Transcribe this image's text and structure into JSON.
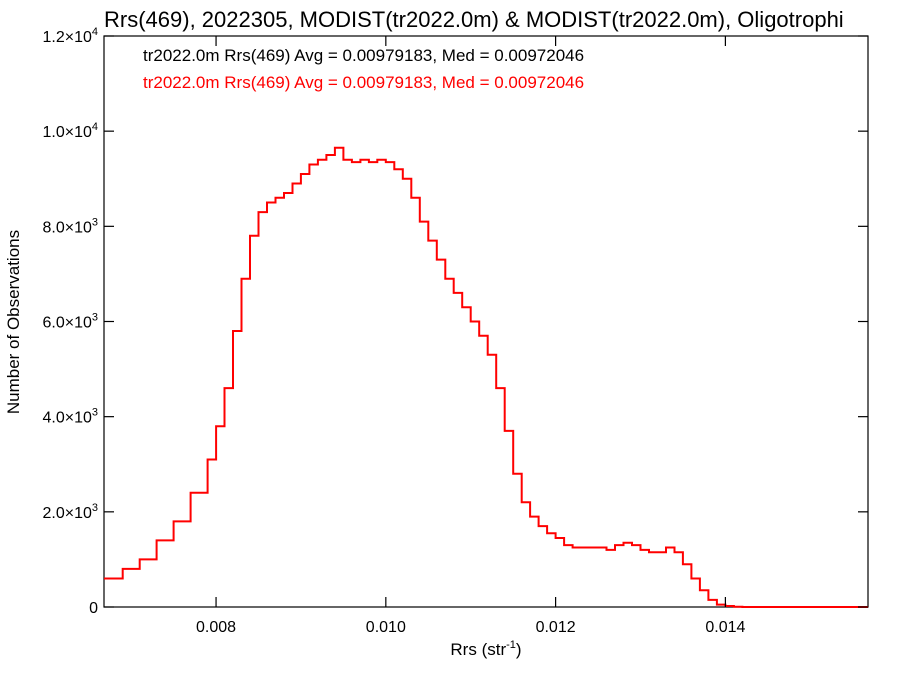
{
  "chart_data": {
    "type": "line",
    "title": "Rrs(469), 2022305, MODIST(tr2022.0m) & MODIST(tr2022.0m), Oligotrophi",
    "xlabel": "Rrs (str",
    "xlabel_sup": "-1",
    "xlabel_end": ")",
    "ylabel": "Number of Observations",
    "xlim": [
      0.00668,
      0.01568
    ],
    "ylim": [
      0,
      12000
    ],
    "x_ticks": [
      {
        "value": 0.008,
        "label": "0.008"
      },
      {
        "value": 0.01,
        "label": "0.010"
      },
      {
        "value": 0.012,
        "label": "0.012"
      },
      {
        "value": 0.014,
        "label": "0.014"
      }
    ],
    "y_ticks": [
      {
        "value": 0,
        "mant": "0",
        "exp": ""
      },
      {
        "value": 2000,
        "mant": "2.0×10",
        "exp": "3"
      },
      {
        "value": 4000,
        "mant": "4.0×10",
        "exp": "3"
      },
      {
        "value": 6000,
        "mant": "6.0×10",
        "exp": "3"
      },
      {
        "value": 8000,
        "mant": "8.0×10",
        "exp": "3"
      },
      {
        "value": 10000,
        "mant": "1.0×10",
        "exp": "4"
      },
      {
        "value": 12000,
        "mant": "1.2×10",
        "exp": "4"
      }
    ],
    "grid": false,
    "legend": [
      {
        "text": "tr2022.0m Rrs(469) Avg = 0.00979183, Med = 0.00972046",
        "color": "#000000"
      },
      {
        "text": "tr2022.0m Rrs(469) Avg = 0.00979183, Med = 0.00972046",
        "color": "#ff0000"
      }
    ],
    "series": [
      {
        "color": "#ff0000",
        "x": [
          0.00668,
          0.0069,
          0.0071,
          0.0073,
          0.0075,
          0.0077,
          0.0079,
          0.008,
          0.0081,
          0.0082,
          0.0083,
          0.0084,
          0.0085,
          0.0086,
          0.0087,
          0.0088,
          0.0089,
          0.009,
          0.0091,
          0.0092,
          0.0093,
          0.0094,
          0.0095,
          0.0096,
          0.0097,
          0.0098,
          0.0099,
          0.01,
          0.0101,
          0.0102,
          0.0103,
          0.0104,
          0.0105,
          0.0106,
          0.0107,
          0.0108,
          0.0109,
          0.011,
          0.0111,
          0.0112,
          0.0113,
          0.0114,
          0.0115,
          0.0116,
          0.0117,
          0.0118,
          0.0119,
          0.012,
          0.0121,
          0.0122,
          0.0123,
          0.0124,
          0.0125,
          0.0126,
          0.0127,
          0.0128,
          0.0129,
          0.013,
          0.0131,
          0.0132,
          0.0133,
          0.0134,
          0.0135,
          0.0136,
          0.0137,
          0.0138,
          0.0139,
          0.014,
          0.0141,
          0.0142,
          0.0145,
          0.015,
          0.0155,
          0.01568
        ],
        "y": [
          600,
          800,
          1000,
          1400,
          1800,
          2400,
          3100,
          3800,
          4600,
          5800,
          6900,
          7800,
          8300,
          8500,
          8600,
          8700,
          8900,
          9100,
          9300,
          9400,
          9500,
          9650,
          9400,
          9350,
          9400,
          9350,
          9400,
          9350,
          9200,
          9000,
          8600,
          8100,
          7700,
          7300,
          6900,
          6600,
          6300,
          6000,
          5700,
          5300,
          4600,
          3700,
          2800,
          2200,
          1900,
          1700,
          1550,
          1450,
          1300,
          1250,
          1250,
          1250,
          1250,
          1200,
          1300,
          1350,
          1300,
          1200,
          1150,
          1150,
          1250,
          1150,
          900,
          600,
          350,
          150,
          50,
          20,
          5,
          0,
          0,
          0,
          0,
          0
        ]
      }
    ]
  }
}
